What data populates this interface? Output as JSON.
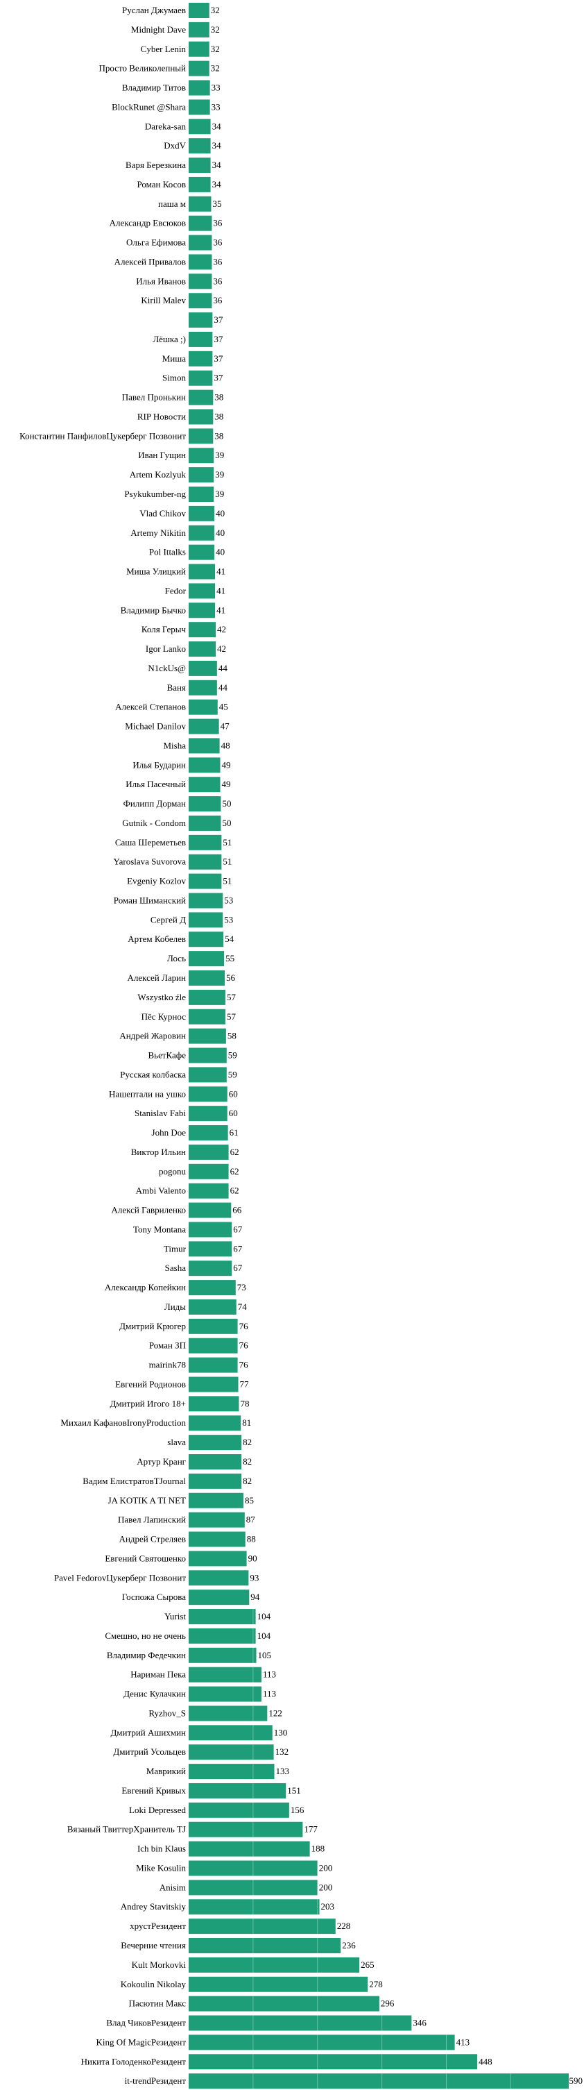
{
  "chart_data": {
    "type": "bar",
    "orientation": "horizontal",
    "bar_color": "#1e9e78",
    "grid": true,
    "xlim": [
      0,
      590
    ],
    "categories": [
      "Руслан Джумаев",
      "Midnight Dave",
      "Cyber Lenin",
      "Просто Великолепный",
      "Владимир Титов",
      "BlockRunet @Shara",
      "Dareka-san",
      "DxdV",
      "Варя Березкина",
      "Роман Косов",
      "паша м",
      "Александр Евсюков",
      "Ольга Ефимова",
      "Алексей Привалов",
      "Илья Иванов",
      "Kirill Malev",
      "",
      "Лёшка ;)",
      "Миша",
      "Simon",
      "Павел Пронькин",
      "RIP Новости",
      "Константин ПанфиловЦукерберг Позвонит",
      "Иван Гущин",
      "Artem Kozlyuk",
      "Psykukumber-ng",
      "Vlad Chikov",
      "Artemy Nikitin",
      "Pol Ittalks",
      "Миша Улицкий",
      "Fedor",
      "Владимир Бычко",
      "Коля Герыч",
      "Igor Lanko",
      "N1ckUs@",
      "Ваня",
      "Алексей Степанов",
      "Michael Danilov",
      "Misha",
      "Илья Бударин",
      "Илья Пасечный",
      "Филипп Дорман",
      "Gutnik - Condom",
      "Саша Шереметьев",
      "Yaroslava Suvorova",
      "Evgeniy Kozlov",
      "Роман Шиманский",
      "Сергей Д",
      "Артем Кобелев",
      "Лось",
      "Алексей Ларин",
      "Wszystko źle",
      "Пёс Курнос",
      "Андрей Жаровин",
      "ВьетКафе",
      "Русская колбаска",
      "Нашептали на ушко",
      "Stanislav Fabi",
      "John Doe",
      "Виктор Ильин",
      "pogonu",
      "Ambi Valento",
      "Алексй Гавриленко",
      "Tony Montana",
      "Timur",
      "Sasha",
      "Александр Копейкин",
      "Лиды",
      "Дмитрий Крюгер",
      "Роман ЗП",
      "mairink78",
      "Евгений Родионов",
      "Дмитрий Игого 18+",
      "Михаил КафановIronyProduction",
      "slava",
      "Артур Кранг",
      "Вадим ЕлистратовTJournal",
      "JA KOTIK A TI NET",
      "Павел Лапинский",
      "Андрей Стреляев",
      "Евгений Святошенко",
      "Pavel FedorovЦукерберг Позвонит",
      "Госпожа Сырова",
      "Yurist",
      "Смешно, но не очень",
      "Владимир Федечкин",
      "Нариман Пека",
      "Денис Кулачкин",
      "Ryzhov_S",
      "Дмитрий Ашихмин",
      "Дмитрий Усольцев",
      "Маврикий",
      "Евгений Кривых",
      "Loki Depressed",
      "Вязаный ТвиттерХранитель TJ",
      "Ich bin Klaus",
      "Mike Kosulin",
      "Anisim",
      "Andrey Stavitskiy",
      "хрустРезидент",
      "Вечерние чтения",
      "Kult Morkovki",
      "Kokoulin Nikolay",
      "Пасютин Макс",
      "Влад ЧиковРезидент",
      "King Of MagicРезидент",
      "Никита ГолоденкоРезидент",
      "it-trendРезидент"
    ],
    "values": [
      32,
      32,
      32,
      32,
      33,
      33,
      34,
      34,
      34,
      34,
      35,
      36,
      36,
      36,
      36,
      36,
      37,
      37,
      37,
      37,
      38,
      38,
      38,
      39,
      39,
      39,
      40,
      40,
      40,
      41,
      41,
      41,
      42,
      42,
      44,
      44,
      45,
      47,
      48,
      49,
      49,
      50,
      50,
      51,
      51,
      51,
      53,
      53,
      54,
      55,
      56,
      57,
      57,
      58,
      59,
      59,
      60,
      60,
      61,
      62,
      62,
      62,
      66,
      67,
      67,
      67,
      73,
      74,
      76,
      76,
      76,
      77,
      78,
      81,
      82,
      82,
      82,
      85,
      87,
      88,
      90,
      93,
      94,
      104,
      104,
      105,
      113,
      113,
      122,
      130,
      132,
      133,
      151,
      156,
      177,
      188,
      200,
      200,
      203,
      228,
      236,
      265,
      278,
      296,
      346,
      413,
      448,
      590
    ],
    "title": "",
    "xlabel": "",
    "ylabel": ""
  }
}
